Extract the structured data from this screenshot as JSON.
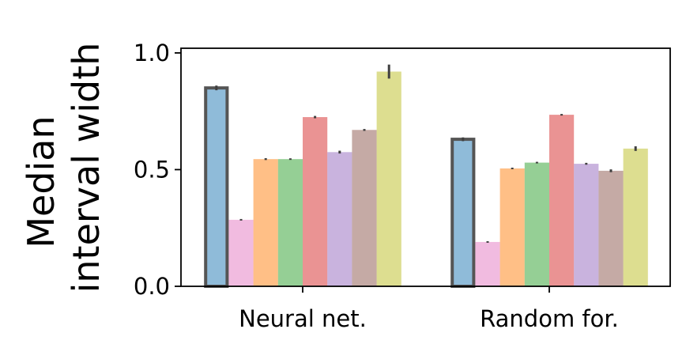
{
  "chart_data": {
    "type": "bar",
    "title": "",
    "xlabel": "",
    "ylabel_lines": [
      "Median",
      "interval width"
    ],
    "categories": [
      "Neural net.",
      "Random for."
    ],
    "ylim": [
      0,
      1.02
    ],
    "yticks": [
      0.0,
      0.5,
      1.0
    ],
    "ytick_labels": [
      "0.0",
      "0.5",
      "1.0"
    ],
    "grid": false,
    "legend": "none",
    "series": [
      {
        "color": "#1f77b4",
        "values": [
          0.85,
          0.63
        ],
        "errors": [
          0.01,
          0.008
        ],
        "highlighted": true
      },
      {
        "color": "#e377c2",
        "values": [
          0.285,
          0.19
        ],
        "errors": [
          0.002,
          0.001
        ]
      },
      {
        "color": "#ff7f0e",
        "values": [
          0.545,
          0.505
        ],
        "errors": [
          0.004,
          0.003
        ]
      },
      {
        "color": "#2ca02c",
        "values": [
          0.545,
          0.53
        ],
        "errors": [
          0.003,
          0.002
        ]
      },
      {
        "color": "#d62728",
        "values": [
          0.725,
          0.735
        ],
        "errors": [
          0.005,
          0.003
        ]
      },
      {
        "color": "#9467bd",
        "values": [
          0.575,
          0.525
        ],
        "errors": [
          0.006,
          0.004
        ]
      },
      {
        "color": "#8c564b",
        "values": [
          0.67,
          0.495
        ],
        "errors": [
          0.004,
          0.006
        ]
      },
      {
        "color": "#bcbd22",
        "values": [
          0.92,
          0.59
        ],
        "errors": [
          0.03,
          0.01
        ]
      }
    ]
  }
}
